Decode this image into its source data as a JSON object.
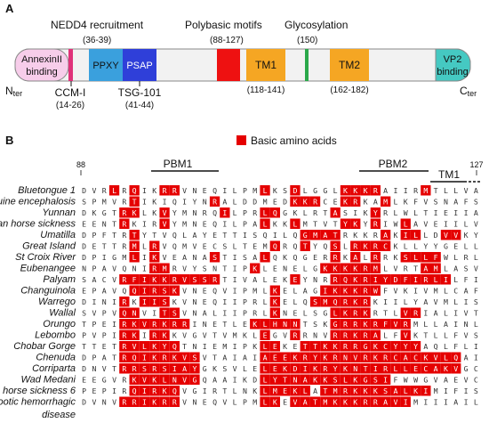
{
  "panelA": {
    "panel_label": "A",
    "annotations": {
      "nedd4": "NEDD4 recruitment",
      "nedd4_range": "(36-39)",
      "polybasic": "Polybasic motifs",
      "polybasic_range": "(88-127)",
      "glyco": "Glycosylation",
      "glyco_pos": "(150)",
      "nter": "N",
      "nter_sub": "ter",
      "cter": "C",
      "cter_sub": "ter",
      "ccm": "CCM-I",
      "ccm_range": "(14-26)",
      "tsg": "TSG-101",
      "tsg_range": "(41-44)",
      "tm1_range": "(118-141)",
      "tm2_range": "(162-182)"
    },
    "domains": {
      "annexin_line1": "AnnexinII",
      "annexin_line2": "binding",
      "pptxy": "PPXY",
      "psap": "PSAP",
      "tm1": "TM1",
      "tm2": "TM2",
      "vp2_line1": "VP2",
      "vp2_line2": "binding"
    },
    "colors": {
      "annexin": "#f7cdea",
      "ccm": "#e0337a",
      "ppxy": "#3aa0dd",
      "psap": "#2f3fd9",
      "polybasic": "#ee1111",
      "tm": "#f5a623",
      "glyco": "#2aa84a",
      "vp2": "#45c9c2"
    }
  },
  "panelB": {
    "panel_label": "B",
    "legend": "Basic amino acids",
    "start_pos": "88",
    "end_pos": "127",
    "pbm1": "PBM1",
    "pbm2": "PBM2",
    "tm1": "TM1",
    "highlight_color": "#e50000",
    "species": [
      "Bluetongue 1",
      "Equine encephalosis",
      "Yunnan",
      "Peruvian horse sickness",
      "Umatilla",
      "Great Island",
      "St Croix River",
      "Eubenangee",
      "Palyam",
      "Changuinola",
      "Warrego",
      "Wallal",
      "Orungo",
      "Lebombo",
      "Chobar Gorge",
      "Chenuda",
      "Corriparta",
      "Wad Medani",
      "African horse sickness 6",
      "Epizootic hemorrhagic"
    ],
    "species_cont": "disease",
    "sequences": [
      "DVRLRQIKRRVNEQILPMLKSDLGGLKKKRAIIRMTLLVA",
      "SPMVRTIKIQIYNRALDDMEDKKRCEKRKAMLKFVSNAFS",
      "DKGTRKLKVYMNRQILPRLQGKLRTASIKYRLWLTIEIIA",
      "EENTRKIRVYMNEQILPALKKLMTVTYKYRIWLAVEIILV",
      "DPFTRTYTVQLAYETTISQILQGMATRKKRAKILLDVVKYML",
      "DETTRMLRVQMVECSLTEMQRQTYQSLRKRCKLLYYGELLCV",
      "DPIGMLIKVEANASTISALQKQGERRKALRRKSLLFWLRLTT",
      "NPAVQNIRMRVYSNTIPKLENELGKKKKRMLVRTAMLASV",
      "SACVRFIKKRVSSRTIVALEKEYNRRQKRIYDFIRLILFIMS",
      "EPAVQQIRSKVNEQVIPMLKELAGIKKKRWFVKIVMLCAF",
      "DINIRKIISKVNEQIIPRLKELQSMQRKRKIILYAVMLIS",
      "SVPVQNVITSVNALIIPRLKNELSGLKRKRTLVRIALIVTA",
      "TPEIRKVRKRRINETLEKLHNNTSKGRRKRFVRMLLAINL",
      "PVPIRKIRKKVGVTVMKLEGVRRNVRRKRALFVKTLLFVSI",
      "TTETRVLKYQTNIEMIPKLEKETTKKRRGKCYYYAQLFLI",
      "DPATRQIKRKVSVTAIAIAEEKRYKRNVRKRCACKVLQAIS",
      "DNVTRRSRSIAYGKSVLELEKDIKRYKNTIRLLECAKVGCL",
      "EEGVRKVKLNVGQAAIKDLYTNAKKSLKGSIFWWGVAEVC",
      "PEPIRQIRKQVGIRTLNKLMEKLATMRKKKSALKIMIFIS",
      "DVNVRRIKRRVNEQVLPMLKEVATMKKKRRAVIMIIIAIL"
    ],
    "highlights": [
      [
        3,
        5,
        8,
        9,
        18,
        21,
        26,
        27,
        28,
        29,
        34
      ],
      [
        5,
        13,
        21,
        22,
        23,
        26,
        27,
        30
      ],
      [
        4,
        5,
        8,
        14,
        18,
        19,
        25,
        29
      ],
      [
        4,
        8,
        18,
        21,
        26,
        27,
        29,
        32
      ],
      [
        5,
        22,
        23,
        24,
        25,
        30,
        32,
        33,
        36,
        37
      ],
      [
        5,
        7,
        19,
        22,
        25,
        27,
        28,
        29,
        30
      ],
      [
        5,
        7,
        13,
        18,
        25,
        27,
        29,
        32,
        33,
        34,
        35
      ],
      [
        7,
        8,
        17,
        24,
        25,
        26,
        27,
        28,
        29,
        34,
        35
      ],
      [
        4,
        5,
        6,
        7,
        8,
        9,
        10,
        11,
        12,
        13,
        21,
        25,
        26,
        27,
        28,
        29,
        30,
        31,
        32,
        33,
        34,
        35,
        36
      ],
      [
        5,
        6,
        7,
        8,
        9,
        19,
        24,
        25,
        26,
        27,
        28,
        29
      ],
      [
        4,
        6,
        7,
        8,
        19,
        23,
        24,
        25,
        26,
        27,
        28
      ],
      [
        4,
        5,
        8,
        9,
        19,
        25,
        26,
        27,
        28,
        32,
        33
      ],
      [
        4,
        5,
        6,
        7,
        8,
        9,
        10,
        17,
        18,
        19,
        20,
        21,
        25,
        26,
        27,
        28,
        29,
        30,
        31,
        32
      ],
      [
        4,
        5,
        7,
        8,
        18,
        21,
        25,
        26,
        27,
        28,
        29,
        32
      ],
      [
        4,
        5,
        6,
        7,
        8,
        9,
        18,
        19,
        22,
        23,
        24,
        25,
        26,
        27,
        28,
        29,
        30,
        31,
        32,
        33
      ],
      [
        4,
        5,
        6,
        7,
        8,
        9,
        10,
        11,
        18,
        19,
        20,
        21,
        22,
        23,
        24,
        25,
        26,
        27,
        28,
        29,
        30,
        31,
        32,
        33,
        34,
        35,
        36,
        37
      ],
      [
        4,
        5,
        6,
        7,
        8,
        9,
        10,
        11,
        18,
        19,
        20,
        21,
        22,
        23,
        24,
        25,
        26,
        27,
        28,
        29,
        30,
        31,
        32,
        33,
        34,
        35,
        36,
        37
      ],
      [
        5,
        6,
        7,
        8,
        9,
        10,
        11,
        18,
        19,
        20,
        21,
        22,
        23,
        24,
        25,
        26,
        27,
        28,
        29,
        30
      ],
      [
        5,
        6,
        7,
        8,
        9,
        18,
        19,
        20,
        21,
        22,
        24,
        25,
        26,
        27,
        28,
        29,
        30,
        31,
        32,
        33,
        34
      ],
      [
        4,
        5,
        6,
        7,
        8,
        9,
        18,
        19,
        21,
        22,
        23,
        24,
        25,
        26,
        27,
        28,
        29,
        30,
        31,
        32
      ]
    ]
  }
}
